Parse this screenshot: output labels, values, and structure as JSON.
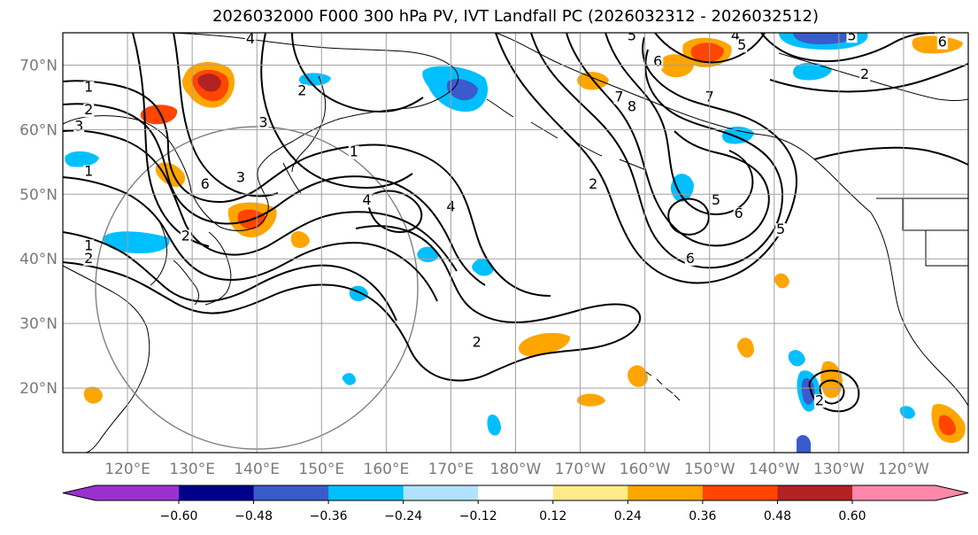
{
  "title": "2026032000 F000 300 hPa PV, IVT Landfall PC (2026032312 - 2026032512)",
  "map": {
    "lon_range": [
      110,
      250
    ],
    "lat_range": [
      10,
      75
    ],
    "lat_ticks": [
      {
        "value": 70,
        "label": "70°N"
      },
      {
        "value": 60,
        "label": "60°N"
      },
      {
        "value": 50,
        "label": "50°N"
      },
      {
        "value": 40,
        "label": "40°N"
      },
      {
        "value": 30,
        "label": "30°N"
      },
      {
        "value": 20,
        "label": "20°N"
      }
    ],
    "lon_ticks": [
      {
        "value": 120,
        "label": "120°E"
      },
      {
        "value": 130,
        "label": "130°E"
      },
      {
        "value": 140,
        "label": "140°E"
      },
      {
        "value": 150,
        "label": "150°E"
      },
      {
        "value": 160,
        "label": "160°E"
      },
      {
        "value": 170,
        "label": "170°E"
      },
      {
        "value": 180,
        "label": "180°W"
      },
      {
        "value": 190,
        "label": "170°W"
      },
      {
        "value": 200,
        "label": "160°W"
      },
      {
        "value": 210,
        "label": "150°W"
      },
      {
        "value": 220,
        "label": "140°W"
      },
      {
        "value": 230,
        "label": "130°W"
      },
      {
        "value": 240,
        "label": "120°W"
      }
    ],
    "grid": true
  },
  "colorbar": {
    "labels": [
      "−0.60",
      "−0.48",
      "−0.36",
      "−0.24",
      "−0.12",
      "0.12",
      "0.24",
      "0.36",
      "0.48",
      "0.60"
    ],
    "colors": [
      "#9b30d0",
      "#00008b",
      "#3a5bcc",
      "#00bfff",
      "#b0e2ff",
      "#ffffff",
      "#ffeb8a",
      "#ffa500",
      "#ff4500",
      "#b22222",
      "#ff88aa"
    ],
    "extend": "both"
  },
  "contour_labels": [
    {
      "text": "1",
      "lon": 114,
      "lat": 66
    },
    {
      "text": "2",
      "lon": 114,
      "lat": 62.5
    },
    {
      "text": "3",
      "lon": 112.5,
      "lat": 60
    },
    {
      "text": "1",
      "lon": 114,
      "lat": 53
    },
    {
      "text": "1",
      "lon": 114,
      "lat": 41.5
    },
    {
      "text": "2",
      "lon": 114,
      "lat": 39.5
    },
    {
      "text": "6",
      "lon": 132,
      "lat": 51
    },
    {
      "text": "3",
      "lon": 137.5,
      "lat": 52
    },
    {
      "text": "2",
      "lon": 129,
      "lat": 43
    },
    {
      "text": "4",
      "lon": 139,
      "lat": 73.5
    },
    {
      "text": "2",
      "lon": 147,
      "lat": 65.5
    },
    {
      "text": "3",
      "lon": 141,
      "lat": 60.5
    },
    {
      "text": "1",
      "lon": 155,
      "lat": 56
    },
    {
      "text": "4",
      "lon": 157,
      "lat": 48.5
    },
    {
      "text": "4",
      "lon": 170,
      "lat": 47.5
    },
    {
      "text": "2",
      "lon": 174,
      "lat": 26.5
    },
    {
      "text": "5",
      "lon": 198,
      "lat": 74
    },
    {
      "text": "6",
      "lon": 202,
      "lat": 70
    },
    {
      "text": "7",
      "lon": 196,
      "lat": 64.5
    },
    {
      "text": "8",
      "lon": 198,
      "lat": 63
    },
    {
      "text": "2",
      "lon": 192,
      "lat": 51
    },
    {
      "text": "4",
      "lon": 214,
      "lat": 74
    },
    {
      "text": "5",
      "lon": 215,
      "lat": 72.5
    },
    {
      "text": "7",
      "lon": 210,
      "lat": 64.5
    },
    {
      "text": "5",
      "lon": 211,
      "lat": 48.5
    },
    {
      "text": "6",
      "lon": 214.5,
      "lat": 46.5
    },
    {
      "text": "6",
      "lon": 207,
      "lat": 39.5
    },
    {
      "text": "5",
      "lon": 221,
      "lat": 44
    },
    {
      "text": "2",
      "lon": 234,
      "lat": 68
    },
    {
      "text": "2",
      "lon": 227,
      "lat": 17.5
    },
    {
      "text": "5",
      "lon": 232,
      "lat": 74
    },
    {
      "text": "6",
      "lon": 246,
      "lat": 73
    }
  ]
}
